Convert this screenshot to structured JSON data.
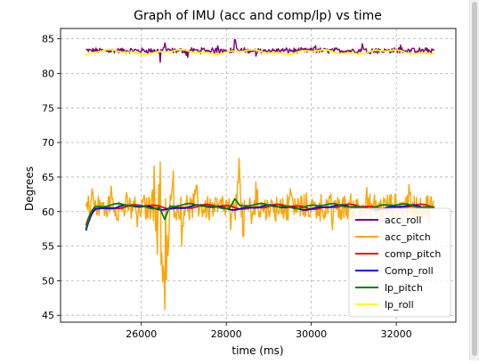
{
  "chart_data": {
    "type": "line",
    "title": "Graph of IMU (acc and comp/lp) vs time",
    "xlabel": "time (ms)",
    "ylabel": "Degrees",
    "xlim": [
      24100,
      33400
    ],
    "ylim": [
      44,
      86.5
    ],
    "xticks": [
      26000,
      28000,
      30000,
      32000
    ],
    "xtick_labels": [
      "26000",
      "28000",
      "30000",
      "32000"
    ],
    "yticks": [
      45,
      50,
      55,
      60,
      65,
      70,
      75,
      80,
      85
    ],
    "ytick_labels": [
      "45",
      "50",
      "55",
      "60",
      "65",
      "70",
      "75",
      "80",
      "85"
    ],
    "grid": true,
    "legend_position": "lower-right",
    "x_range": [
      24700,
      32900
    ],
    "series": [
      {
        "name": "acc_roll",
        "color": "#800080",
        "style": "noisy",
        "base": 83.3,
        "noise": 0.35,
        "spikes": [
          [
            26450,
            81.6
          ],
          [
            26550,
            84.4
          ],
          [
            27100,
            82.3
          ],
          [
            27800,
            84.0
          ],
          [
            28200,
            84.9
          ],
          [
            28700,
            82.5
          ],
          [
            30100,
            84.0
          ],
          [
            31200,
            84.3
          ],
          [
            32100,
            84.1
          ]
        ]
      },
      {
        "name": "acc_pitch",
        "color": "#ffa500",
        "style": "noisy",
        "base": 60.6,
        "noise": 1.8,
        "spikes": [
          [
            24850,
            63.3
          ],
          [
            25300,
            63.7
          ],
          [
            25900,
            57.8
          ],
          [
            26300,
            66.6
          ],
          [
            26380,
            53.8
          ],
          [
            26450,
            67.2
          ],
          [
            26500,
            49.8
          ],
          [
            26560,
            45.8
          ],
          [
            26620,
            53.6
          ],
          [
            26750,
            65.9
          ],
          [
            26950,
            55.0
          ],
          [
            27300,
            63.8
          ],
          [
            28100,
            57.4
          ],
          [
            28300,
            67.7
          ],
          [
            28400,
            56.4
          ],
          [
            28700,
            64.3
          ],
          [
            29500,
            63.3
          ],
          [
            30500,
            57.4
          ],
          [
            31300,
            63.5
          ],
          [
            32300,
            63.9
          ]
        ]
      },
      {
        "name": "comp_pitch",
        "color": "#ff0000",
        "style": "smooth",
        "base": 60.7,
        "start": 57.8
      },
      {
        "name": "Comp_roll",
        "color": "#0000ff",
        "style": "smooth",
        "base": 60.6,
        "start": 57.5
      },
      {
        "name": "lp_pitch",
        "color": "#008000",
        "style": "smooth",
        "base": 60.8,
        "start": 57.8,
        "dips": [
          [
            26550,
            58.9
          ],
          [
            28200,
            61.9
          ]
        ]
      },
      {
        "name": "lp_roll",
        "color": "#ffff00",
        "style": "smooth",
        "base": 83.1,
        "start": 82.6
      }
    ]
  }
}
